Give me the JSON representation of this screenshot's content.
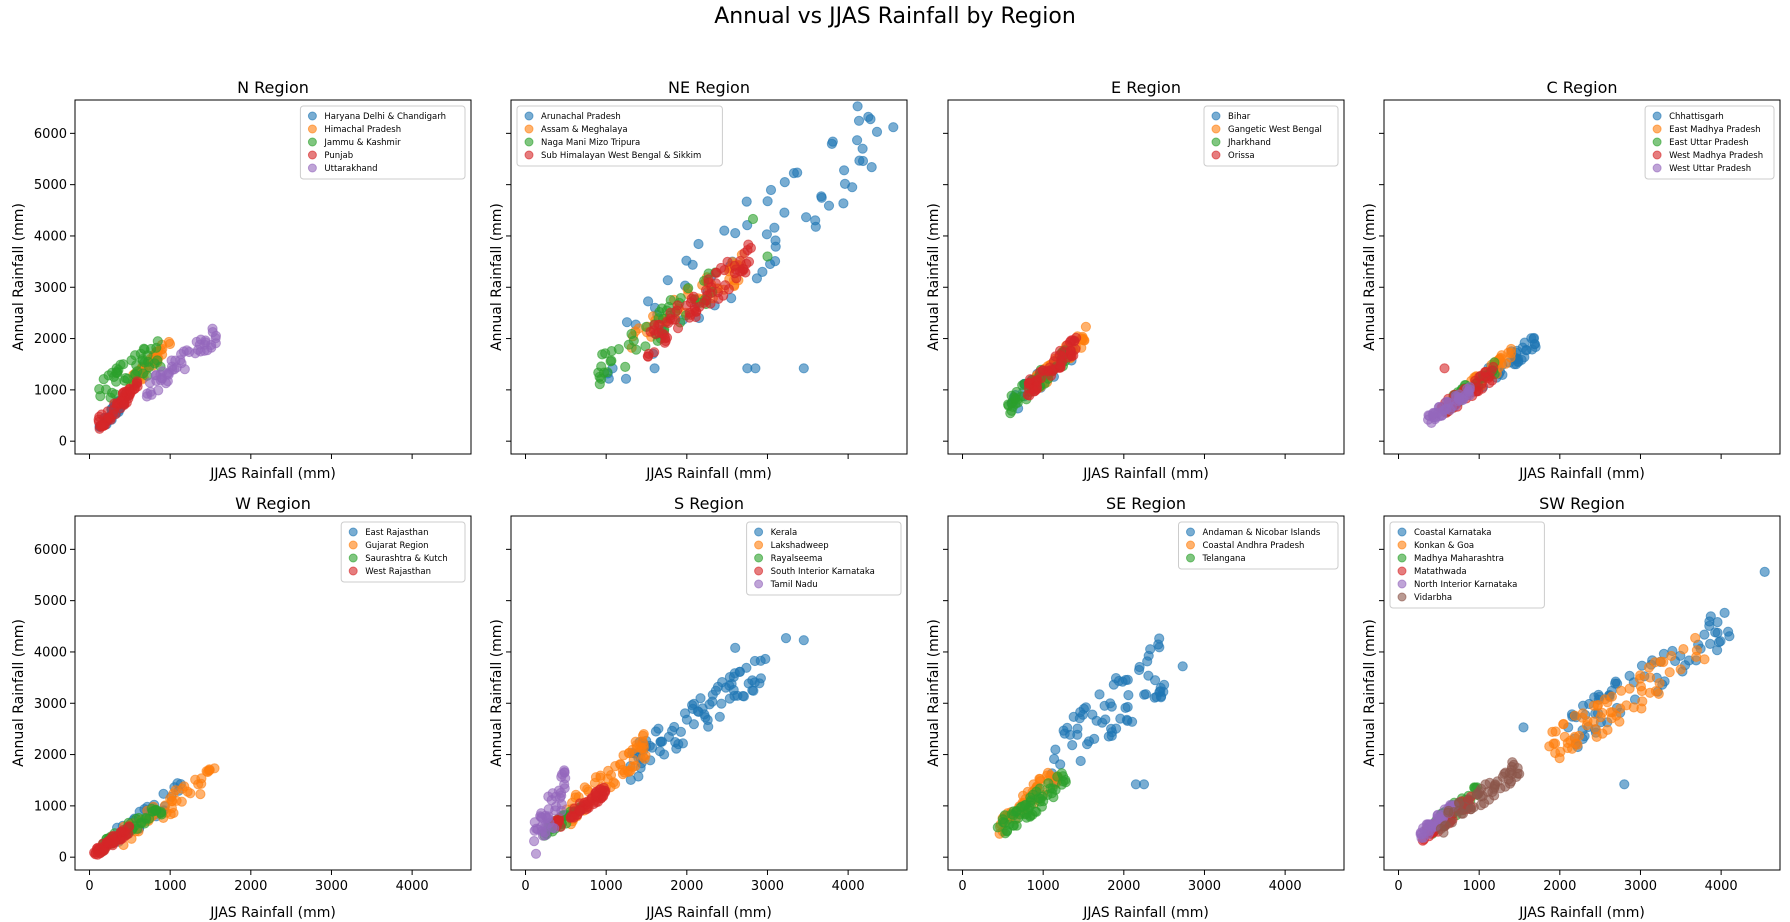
{
  "figure": {
    "title": "Annual vs JJAS Rainfall by Region"
  },
  "chart_data": [
    {
      "type": "scatter",
      "title": "N Region",
      "xlabel": "JJAS Rainfall (mm)",
      "ylabel": "Annual Rainfall (mm)",
      "xlim": [
        -180,
        4730
      ],
      "ylim": [
        -250,
        6650
      ],
      "xticks": [],
      "yticks": [
        "0",
        "1000",
        "2000",
        "3000",
        "4000",
        "5000",
        "6000"
      ],
      "legend_loc": "upper right",
      "series": [
        {
          "name": "Haryana Delhi & Chandigarh",
          "color": "#1f77b4",
          "xr": [
            120,
            480
          ],
          "yr": [
            250,
            900
          ],
          "n": 45
        },
        {
          "name": "Himachal Pradesh",
          "color": "#ff7f0e",
          "xr": [
            500,
            1000
          ],
          "yr": [
            1100,
            1900
          ],
          "n": 40
        },
        {
          "name": "Jammu & Kashmir",
          "color": "#2ca02c",
          "xr": [
            100,
            900
          ],
          "yr": [
            900,
            1750
          ],
          "n": 45,
          "spread": 0.35
        },
        {
          "name": "Punjab",
          "color": "#d62728",
          "xr": [
            100,
            600
          ],
          "yr": [
            300,
            1100
          ],
          "n": 55
        },
        {
          "name": "Uttarakhand",
          "color": "#9467bd",
          "xr": [
            700,
            1600
          ],
          "yr": [
            1000,
            2100
          ],
          "n": 50
        }
      ]
    },
    {
      "type": "scatter",
      "title": "NE Region",
      "xlabel": "JJAS Rainfall (mm)",
      "ylabel": "Annual Rainfall (mm)",
      "xlim": [
        -180,
        4730
      ],
      "ylim": [
        -250,
        6650
      ],
      "xticks": [],
      "yticks": [],
      "legend_loc": "upper left",
      "series": [
        {
          "name": "Arunachal Pradesh",
          "color": "#1f77b4",
          "xr": [
            1000,
            4500
          ],
          "yr": [
            1500,
            6200
          ],
          "n": 60,
          "extra": [
            [
              4250,
              6320
            ],
            [
              4560,
              6120
            ],
            [
              4180,
              5700
            ],
            [
              3950,
              5280
            ],
            [
              4050,
              4950
            ],
            [
              2750,
              1420
            ],
            [
              2850,
              1420
            ],
            [
              3450,
              1420
            ],
            [
              1600,
              1420
            ],
            [
              1080,
              1420
            ]
          ]
        },
        {
          "name": "Assam & Meghalaya",
          "color": "#ff7f0e",
          "xr": [
            1200,
            2700
          ],
          "yr": [
            1900,
            3400
          ],
          "n": 45
        },
        {
          "name": "Naga Mani Mizo Tripura",
          "color": "#2ca02c",
          "xr": [
            900,
            2400
          ],
          "yr": [
            1350,
            3200
          ],
          "n": 50,
          "extra": [
            [
              2820,
              4330
            ],
            [
              3000,
              3600
            ]
          ]
        },
        {
          "name": "Sub Himalayan West Bengal & Sikkim",
          "color": "#d62728",
          "xr": [
            1500,
            2800
          ],
          "yr": [
            1900,
            3600
          ],
          "n": 75
        }
      ]
    },
    {
      "type": "scatter",
      "title": "E Region",
      "xlabel": "JJAS Rainfall (mm)",
      "ylabel": "Annual Rainfall (mm)",
      "xlim": [
        -180,
        4730
      ],
      "ylim": [
        -250,
        6650
      ],
      "xticks": [],
      "yticks": [],
      "legend_loc": "upper right",
      "series": [
        {
          "name": "Bihar",
          "color": "#1f77b4",
          "xr": [
            600,
            1400
          ],
          "yr": [
            700,
            1800
          ],
          "n": 40
        },
        {
          "name": "Gangetic West Bengal",
          "color": "#ff7f0e",
          "xr": [
            900,
            1550
          ],
          "yr": [
            1100,
            2100
          ],
          "n": 45
        },
        {
          "name": "Jharkhand",
          "color": "#2ca02c",
          "xr": [
            550,
            1300
          ],
          "yr": [
            650,
            1700
          ],
          "n": 45
        },
        {
          "name": "Orissa",
          "color": "#d62728",
          "xr": [
            800,
            1450
          ],
          "yr": [
            1000,
            1950
          ],
          "n": 55
        }
      ]
    },
    {
      "type": "scatter",
      "title": "C Region",
      "xlabel": "JJAS Rainfall (mm)",
      "ylabel": "Annual Rainfall (mm)",
      "xlim": [
        -180,
        4730
      ],
      "ylim": [
        -250,
        6650
      ],
      "xticks": [],
      "yticks": [],
      "legend_loc": "upper right",
      "series": [
        {
          "name": "Chhattisgarh",
          "color": "#1f77b4",
          "xr": [
            900,
            1700
          ],
          "yr": [
            1000,
            1950
          ],
          "n": 45
        },
        {
          "name": "East Madhya Pradesh",
          "color": "#ff7f0e",
          "xr": [
            700,
            1400
          ],
          "yr": [
            800,
            1700
          ],
          "n": 40
        },
        {
          "name": "East Uttar Pradesh",
          "color": "#2ca02c",
          "xr": [
            600,
            1200
          ],
          "yr": [
            700,
            1450
          ],
          "n": 40
        },
        {
          "name": "West Madhya Pradesh",
          "color": "#d62728",
          "xr": [
            500,
            1200
          ],
          "yr": [
            550,
            1350
          ],
          "n": 40,
          "extra": [
            [
              570,
              1420
            ]
          ]
        },
        {
          "name": "West Uttar Pradesh",
          "color": "#9467bd",
          "xr": [
            350,
            900
          ],
          "yr": [
            400,
            1000
          ],
          "n": 45
        }
      ]
    },
    {
      "type": "scatter",
      "title": "W Region",
      "xlabel": "JJAS Rainfall (mm)",
      "ylabel": "Annual Rainfall (mm)",
      "xlim": [
        -180,
        4730
      ],
      "ylim": [
        -250,
        6650
      ],
      "xticks": [
        "0",
        "1000",
        "2000",
        "3000",
        "4000"
      ],
      "yticks": [
        "0",
        "1000",
        "2000",
        "3000",
        "4000",
        "5000",
        "6000"
      ],
      "legend_loc": "upper right",
      "series": [
        {
          "name": "East Rajasthan",
          "color": "#1f77b4",
          "xr": [
            300,
            1150
          ],
          "yr": [
            350,
            1350
          ],
          "n": 40
        },
        {
          "name": "Gujarat Region",
          "color": "#ff7f0e",
          "xr": [
            400,
            1580
          ],
          "yr": [
            400,
            1650
          ],
          "n": 45
        },
        {
          "name": "Saurashtra & Kutch",
          "color": "#2ca02c",
          "xr": [
            150,
            900
          ],
          "yr": [
            200,
            950
          ],
          "n": 45
        },
        {
          "name": "West Rajasthan",
          "color": "#d62728",
          "xr": [
            50,
            500
          ],
          "yr": [
            60,
            550
          ],
          "n": 55
        }
      ]
    },
    {
      "type": "scatter",
      "title": "S Region",
      "xlabel": "JJAS Rainfall (mm)",
      "ylabel": "Annual Rainfall (mm)",
      "xlim": [
        -180,
        4730
      ],
      "ylim": [
        -250,
        6650
      ],
      "xticks": [
        "0",
        "1000",
        "2000",
        "3000",
        "4000"
      ],
      "yticks": [],
      "legend_loc": "upper right",
      "series": [
        {
          "name": "Kerala",
          "color": "#1f77b4",
          "xr": [
            1300,
            3000
          ],
          "yr": [
            1800,
            3700
          ],
          "n": 80,
          "extra": [
            [
              2600,
              4080
            ],
            [
              3230,
              4270
            ],
            [
              3450,
              4230
            ]
          ]
        },
        {
          "name": "Lakshadweep",
          "color": "#ff7f0e",
          "xr": [
            500,
            1500
          ],
          "yr": [
            800,
            2200
          ],
          "n": 60
        },
        {
          "name": "Rayalseema",
          "color": "#2ca02c",
          "xr": [
            200,
            700
          ],
          "yr": [
            400,
            1000
          ],
          "n": 35
        },
        {
          "name": "South Interior Karnataka",
          "color": "#d62728",
          "xr": [
            350,
            1000
          ],
          "yr": [
            600,
            1300
          ],
          "n": 55
        },
        {
          "name": "Tamil Nadu",
          "color": "#9467bd",
          "xr": [
            100,
            500
          ],
          "yr": [
            300,
            1350
          ],
          "n": 45,
          "spread": 0.4
        }
      ]
    },
    {
      "type": "scatter",
      "title": "SE Region",
      "xlabel": "JJAS Rainfall (mm)",
      "ylabel": "Annual Rainfall (mm)",
      "xlim": [
        -180,
        4730
      ],
      "ylim": [
        -250,
        6650
      ],
      "xticks": [
        "0",
        "1000",
        "2000",
        "3000",
        "4000"
      ],
      "yticks": [],
      "legend_loc": "upper right",
      "series": [
        {
          "name": "Andaman & Nicobar Islands",
          "color": "#1f77b4",
          "xr": [
            1100,
            2500
          ],
          "yr": [
            1700,
            3800
          ],
          "n": 70,
          "spread": 0.3,
          "extra": [
            [
              2150,
              1420
            ],
            [
              2250,
              1420
            ],
            [
              2730,
              3720
            ]
          ]
        },
        {
          "name": "Coastal Andhra Pradesh",
          "color": "#ff7f0e",
          "xr": [
            450,
            1200
          ],
          "yr": [
            600,
            1700
          ],
          "n": 55
        },
        {
          "name": "Telangana",
          "color": "#2ca02c",
          "xr": [
            350,
            1300
          ],
          "yr": [
            400,
            1550
          ],
          "n": 60
        }
      ]
    },
    {
      "type": "scatter",
      "title": "SW Region",
      "xlabel": "JJAS Rainfall (mm)",
      "ylabel": "Annual Rainfall (mm)",
      "xlim": [
        -180,
        4730
      ],
      "ylim": [
        -250,
        6650
      ],
      "xticks": [
        "0",
        "1000",
        "2000",
        "3000",
        "4000"
      ],
      "yticks": [],
      "legend_loc": "upper left",
      "series": [
        {
          "name": "Coastal Karnataka",
          "color": "#1f77b4",
          "xr": [
            2100,
            4150
          ],
          "yr": [
            2400,
            4600
          ],
          "n": 70,
          "extra": [
            [
              4540,
              5560
            ],
            [
              1550,
              2530
            ],
            [
              2800,
              1420
            ]
          ]
        },
        {
          "name": "Konkan & Goa",
          "color": "#ff7f0e",
          "xr": [
            1800,
            3800
          ],
          "yr": [
            2000,
            4100
          ],
          "n": 70
        },
        {
          "name": "Madhya Maharashtra",
          "color": "#2ca02c",
          "xr": [
            350,
            1000
          ],
          "yr": [
            500,
            1300
          ],
          "n": 40
        },
        {
          "name": "Matathwada",
          "color": "#d62728",
          "xr": [
            300,
            900
          ],
          "yr": [
            380,
            1100
          ],
          "n": 40
        },
        {
          "name": "North Interior Karnataka",
          "color": "#9467bd",
          "xr": [
            250,
            700
          ],
          "yr": [
            400,
            1000
          ],
          "n": 40
        },
        {
          "name": "Vidarbha",
          "color": "#8c564b",
          "xr": [
            500,
            1500
          ],
          "yr": [
            600,
            1750
          ],
          "n": 55
        }
      ]
    }
  ]
}
